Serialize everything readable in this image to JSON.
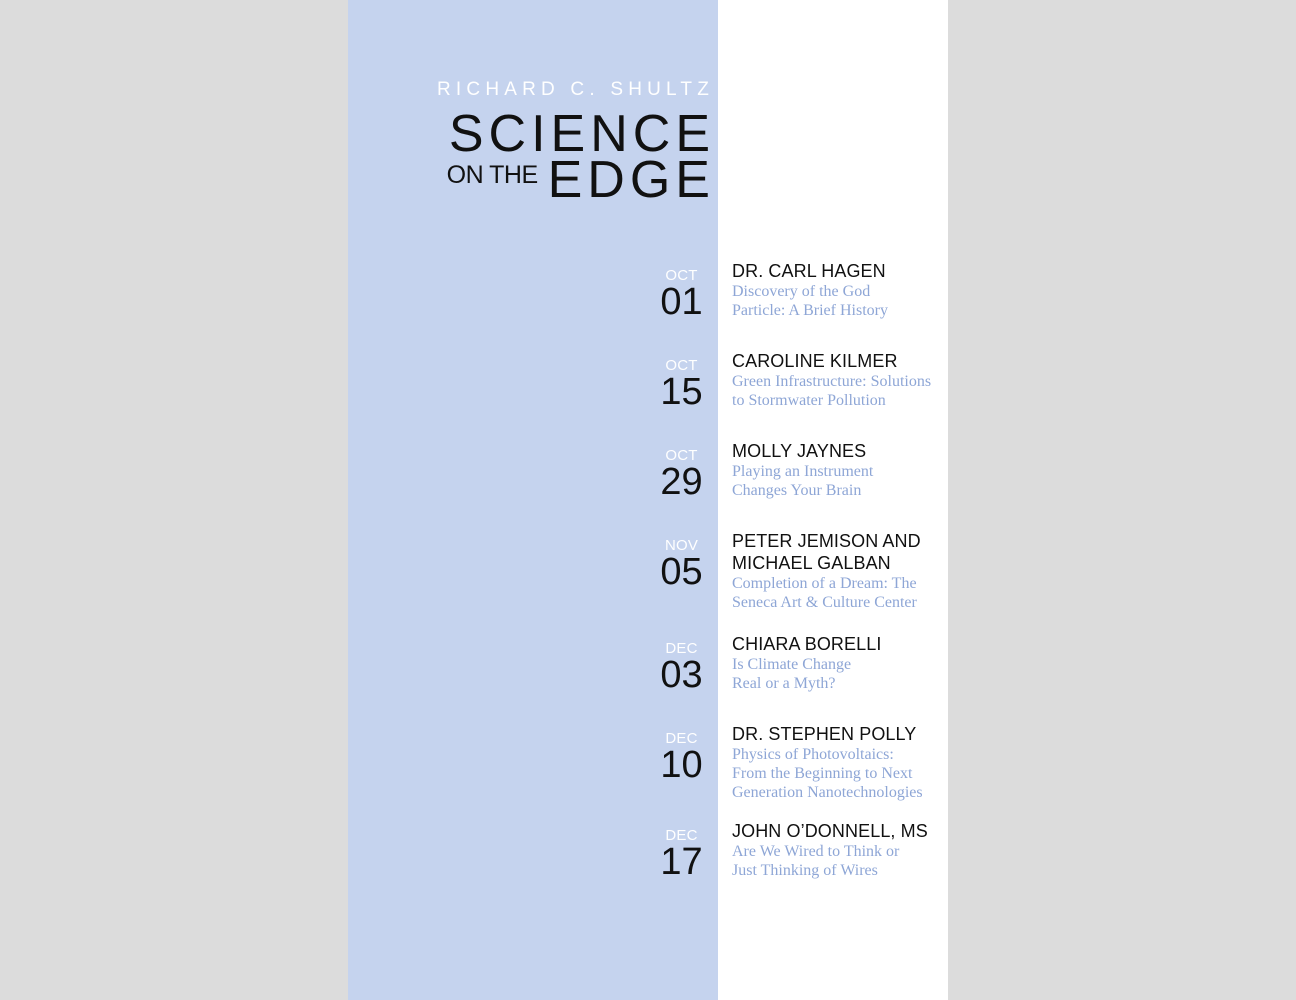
{
  "colors": {
    "background": "#dcdcdc",
    "panel_blue": "#c5d3ee",
    "accent_text": "#8ea6d6",
    "ink": "#111111",
    "white": "#ffffff"
  },
  "masthead": {
    "author": "RICHARD C. SHULTZ",
    "title_main": "SCIENCE",
    "title_small": "ON THE",
    "title_end": "EDGE"
  },
  "events": [
    {
      "month": "OCT",
      "day": "01",
      "speaker": "DR. CARL HAGEN",
      "title": "Discovery of the God\nParticle: A Brief History"
    },
    {
      "month": "OCT",
      "day": "15",
      "speaker": "CAROLINE KILMER",
      "title": "Green Infrastructure: Solutions\nto Stormwater Pollution"
    },
    {
      "month": "OCT",
      "day": "29",
      "speaker": "MOLLY JAYNES",
      "title": "Playing an Instrument\nChanges Your Brain"
    },
    {
      "month": "NOV",
      "day": "05",
      "speaker": "PETER JEMISON AND MICHAEL GALBAN",
      "title": "Completion of a Dream: The\nSeneca Art & Culture Center"
    },
    {
      "month": "DEC",
      "day": "03",
      "speaker": "CHIARA BORELLI",
      "title": "Is Climate Change\nReal or a Myth?"
    },
    {
      "month": "DEC",
      "day": "10",
      "speaker": "DR. STEPHEN POLLY",
      "title": "Physics of Photovoltaics:\nFrom the Beginning to Next\nGeneration Nanotechnologies"
    },
    {
      "month": "DEC",
      "day": "17",
      "speaker": "JOHN O’DONNELL, MS",
      "title": "Are We Wired to Think or\nJust Thinking of Wires"
    }
  ]
}
